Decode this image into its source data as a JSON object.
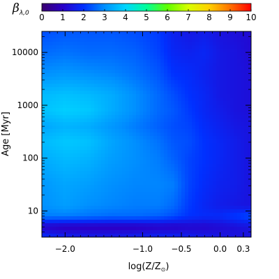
{
  "chart_data": {
    "type": "heatmap",
    "colorbar": {
      "symbol": "β",
      "subscript": "λ,0",
      "range": [
        0,
        10
      ],
      "tick_labels": [
        "0",
        "1",
        "2",
        "3",
        "4",
        "5",
        "6",
        "7",
        "8",
        "9",
        "10"
      ],
      "colormap": [
        "#3a006f",
        "#2a00c8",
        "#0030ff",
        "#0090ff",
        "#00d6ff",
        "#00ff9a",
        "#60ff00",
        "#d8ff00",
        "#ffd000",
        "#ff7000",
        "#ff0000"
      ]
    },
    "xlabel_text": "log(Z/Z",
    "xlabel_symbol": "⊙",
    "xlabel_close": ")",
    "ylabel": "Age [Myr]",
    "x_ticks": [
      {
        "value": -2.0,
        "label": "−2.0"
      },
      {
        "value": -1.0,
        "label": "−1.0"
      },
      {
        "value": -0.5,
        "label": "−0.5"
      },
      {
        "value": 0.0,
        "label": "0.0"
      },
      {
        "value": 0.3,
        "label": "0.3"
      }
    ],
    "y_ticks": [
      {
        "value": 10,
        "label": "10"
      },
      {
        "value": 100,
        "label": "100"
      },
      {
        "value": 1000,
        "label": "1000"
      },
      {
        "value": 10000,
        "label": "10000"
      }
    ],
    "xlim": [
      -2.3,
      0.4
    ],
    "ylim": [
      3.2,
      25000
    ],
    "y_scale": "log",
    "grid_x": [
      -2.3,
      -2.0,
      -1.7,
      -1.4,
      -1.1,
      -0.8,
      -0.6,
      -0.4,
      -0.2,
      0.0,
      0.2,
      0.4
    ],
    "grid_logy": [
      0.5,
      0.7,
      0.9,
      1.1,
      1.5,
      2.0,
      2.3,
      2.6,
      2.9,
      3.2,
      3.6,
      4.0,
      4.4
    ],
    "values": [
      [
        2.0,
        1.7,
        1.6,
        1.6,
        1.7,
        1.8,
        1.8,
        1.7,
        1.6,
        1.5,
        1.4,
        1.4
      ],
      [
        1.0,
        0.9,
        0.9,
        0.9,
        0.9,
        1.0,
        1.0,
        1.1,
        1.1,
        1.2,
        1.3,
        1.4
      ],
      [
        2.8,
        2.8,
        2.7,
        2.6,
        2.6,
        2.5,
        2.3,
        2.0,
        1.9,
        1.9,
        2.1,
        2.3
      ],
      [
        3.0,
        3.2,
        3.0,
        2.9,
        2.8,
        2.8,
        2.6,
        2.1,
        1.8,
        1.6,
        1.5,
        1.4
      ],
      [
        3.1,
        3.3,
        3.2,
        3.0,
        2.9,
        2.9,
        2.8,
        2.2,
        1.9,
        1.7,
        1.6,
        1.4
      ],
      [
        3.4,
        3.6,
        3.5,
        3.2,
        3.0,
        2.8,
        2.5,
        2.2,
        2.0,
        1.8,
        1.6,
        1.4
      ],
      [
        3.6,
        3.8,
        3.7,
        3.3,
        3.0,
        2.7,
        2.4,
        2.3,
        2.0,
        1.8,
        1.6,
        1.4
      ],
      [
        3.3,
        3.5,
        3.4,
        3.1,
        2.8,
        2.5,
        2.3,
        2.2,
        1.9,
        1.7,
        1.5,
        1.4
      ],
      [
        3.7,
        3.9,
        3.8,
        3.4,
        3.0,
        2.6,
        2.4,
        2.1,
        1.8,
        1.6,
        1.4,
        1.3
      ],
      [
        3.6,
        3.7,
        3.6,
        3.4,
        3.0,
        2.6,
        2.3,
        2.0,
        1.8,
        1.5,
        1.4,
        1.3
      ],
      [
        3.0,
        3.1,
        3.0,
        2.9,
        2.7,
        2.4,
        2.0,
        1.9,
        1.7,
        1.5,
        1.4,
        1.3
      ],
      [
        2.6,
        2.7,
        2.6,
        2.6,
        2.5,
        2.2,
        1.8,
        1.7,
        1.8,
        1.5,
        1.4,
        1.2
      ],
      [
        2.3,
        2.4,
        2.4,
        2.4,
        2.3,
        2.1,
        1.7,
        1.5,
        1.6,
        1.4,
        1.3,
        1.2
      ]
    ]
  }
}
